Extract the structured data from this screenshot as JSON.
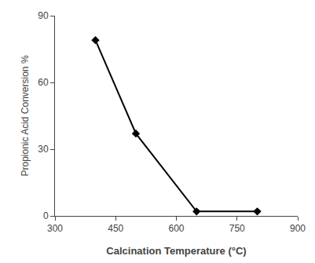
{
  "chart_data": {
    "type": "line",
    "x": [
      400,
      500,
      650,
      800
    ],
    "values": [
      79,
      37,
      2,
      2
    ],
    "xlabel": "Calcination Temperature (°C)",
    "ylabel": "Propionic Acid Conversion %",
    "xlim": [
      300,
      900
    ],
    "ylim": [
      0,
      90
    ],
    "xticks": [
      300,
      450,
      600,
      750,
      900
    ],
    "yticks": [
      0,
      30,
      60,
      90
    ],
    "color": "#000000",
    "marker": "diamond",
    "grid": false
  }
}
